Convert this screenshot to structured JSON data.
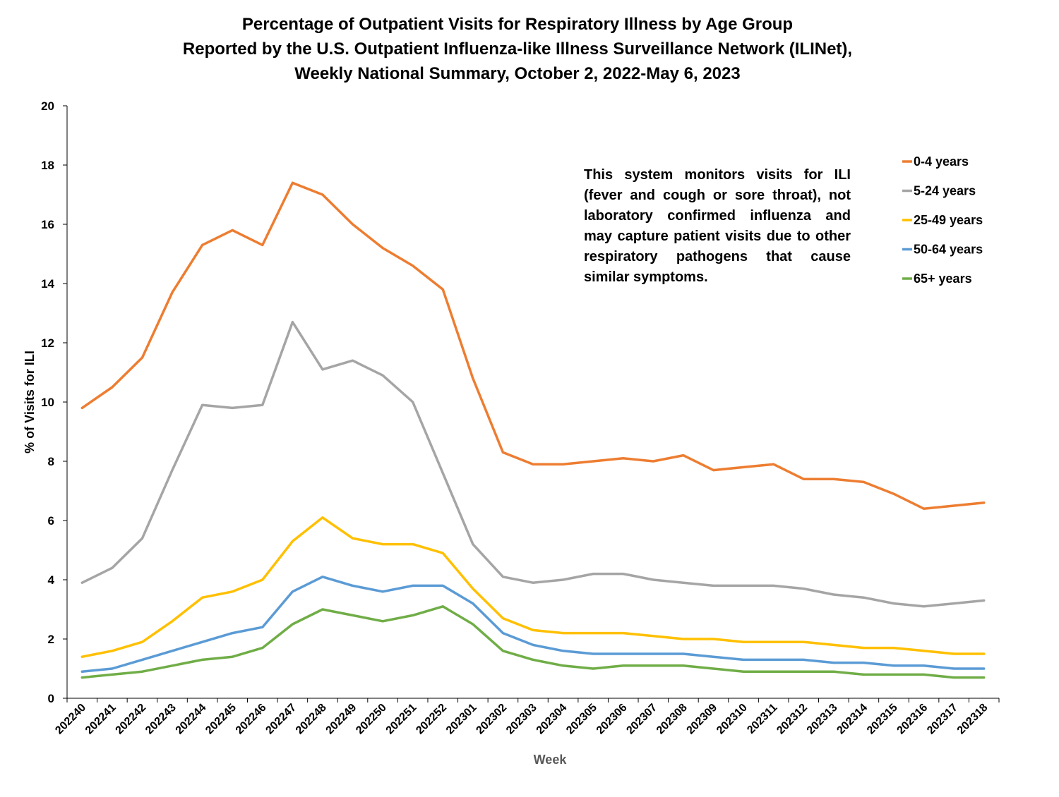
{
  "chart_data": {
    "type": "line",
    "title": [
      "Percentage of Outpatient Visits for Respiratory Illness by Age Group",
      "Reported by the U.S. Outpatient Influenza-like Illness Surveillance Network (ILINet),",
      "Weekly National Summary, October 2, 2022-May 6, 2023"
    ],
    "xlabel": "Week",
    "ylabel": "% of Visits for ILI",
    "ylim": [
      0,
      20
    ],
    "yticks": [
      "0",
      "2",
      "4",
      "6",
      "8",
      "10",
      "12",
      "14",
      "16",
      "18",
      "20"
    ],
    "grid": false,
    "legend_position": "top-right",
    "annotation": "This system monitors visits for ILI (fever and cough or sore throat), not laboratory confirmed influenza and may capture patient visits due to other respiratory pathogens that cause similar symptoms.",
    "categories": [
      "202240",
      "202241",
      "202242",
      "202243",
      "202244",
      "202245",
      "202246",
      "202247",
      "202248",
      "202249",
      "202250",
      "202251",
      "202252",
      "202301",
      "202302",
      "202303",
      "202304",
      "202305",
      "202306",
      "202307",
      "202308",
      "202309",
      "202310",
      "202311",
      "202312",
      "202313",
      "202314",
      "202315",
      "202316",
      "202317",
      "202318"
    ],
    "series": [
      {
        "name": "0-4 years",
        "color": "#ED7D31",
        "values": [
          9.8,
          10.5,
          11.5,
          13.7,
          15.3,
          15.8,
          15.3,
          17.4,
          17.0,
          16.0,
          15.2,
          14.6,
          13.8,
          10.8,
          8.3,
          7.9,
          7.9,
          8.0,
          8.1,
          8.0,
          8.2,
          7.7,
          7.8,
          7.9,
          7.4,
          7.4,
          7.3,
          6.9,
          6.4,
          6.5,
          6.6
        ]
      },
      {
        "name": "5-24 years",
        "color": "#A5A5A5",
        "values": [
          3.9,
          4.4,
          5.4,
          7.7,
          9.9,
          9.8,
          9.9,
          12.7,
          11.1,
          11.4,
          10.9,
          10.0,
          7.6,
          5.2,
          4.1,
          3.9,
          4.0,
          4.2,
          4.2,
          4.0,
          3.9,
          3.8,
          3.8,
          3.8,
          3.7,
          3.5,
          3.4,
          3.2,
          3.1,
          3.2,
          3.3
        ]
      },
      {
        "name": "25-49 years",
        "color": "#FFC000",
        "values": [
          1.4,
          1.6,
          1.9,
          2.6,
          3.4,
          3.6,
          4.0,
          5.3,
          6.1,
          5.4,
          5.2,
          5.2,
          4.9,
          3.7,
          2.7,
          2.3,
          2.2,
          2.2,
          2.2,
          2.1,
          2.0,
          2.0,
          1.9,
          1.9,
          1.9,
          1.8,
          1.7,
          1.7,
          1.6,
          1.5,
          1.5
        ]
      },
      {
        "name": "50-64 years",
        "color": "#5B9BD5",
        "values": [
          0.9,
          1.0,
          1.3,
          1.6,
          1.9,
          2.2,
          2.4,
          3.6,
          4.1,
          3.8,
          3.6,
          3.8,
          3.8,
          3.2,
          2.2,
          1.8,
          1.6,
          1.5,
          1.5,
          1.5,
          1.5,
          1.4,
          1.3,
          1.3,
          1.3,
          1.2,
          1.2,
          1.1,
          1.1,
          1.0,
          1.0
        ]
      },
      {
        "name": "65+ years",
        "color": "#70AD47",
        "values": [
          0.7,
          0.8,
          0.9,
          1.1,
          1.3,
          1.4,
          1.7,
          2.5,
          3.0,
          2.8,
          2.6,
          2.8,
          3.1,
          2.5,
          1.6,
          1.3,
          1.1,
          1.0,
          1.1,
          1.1,
          1.1,
          1.0,
          0.9,
          0.9,
          0.9,
          0.9,
          0.8,
          0.8,
          0.8,
          0.7,
          0.7
        ]
      }
    ]
  }
}
